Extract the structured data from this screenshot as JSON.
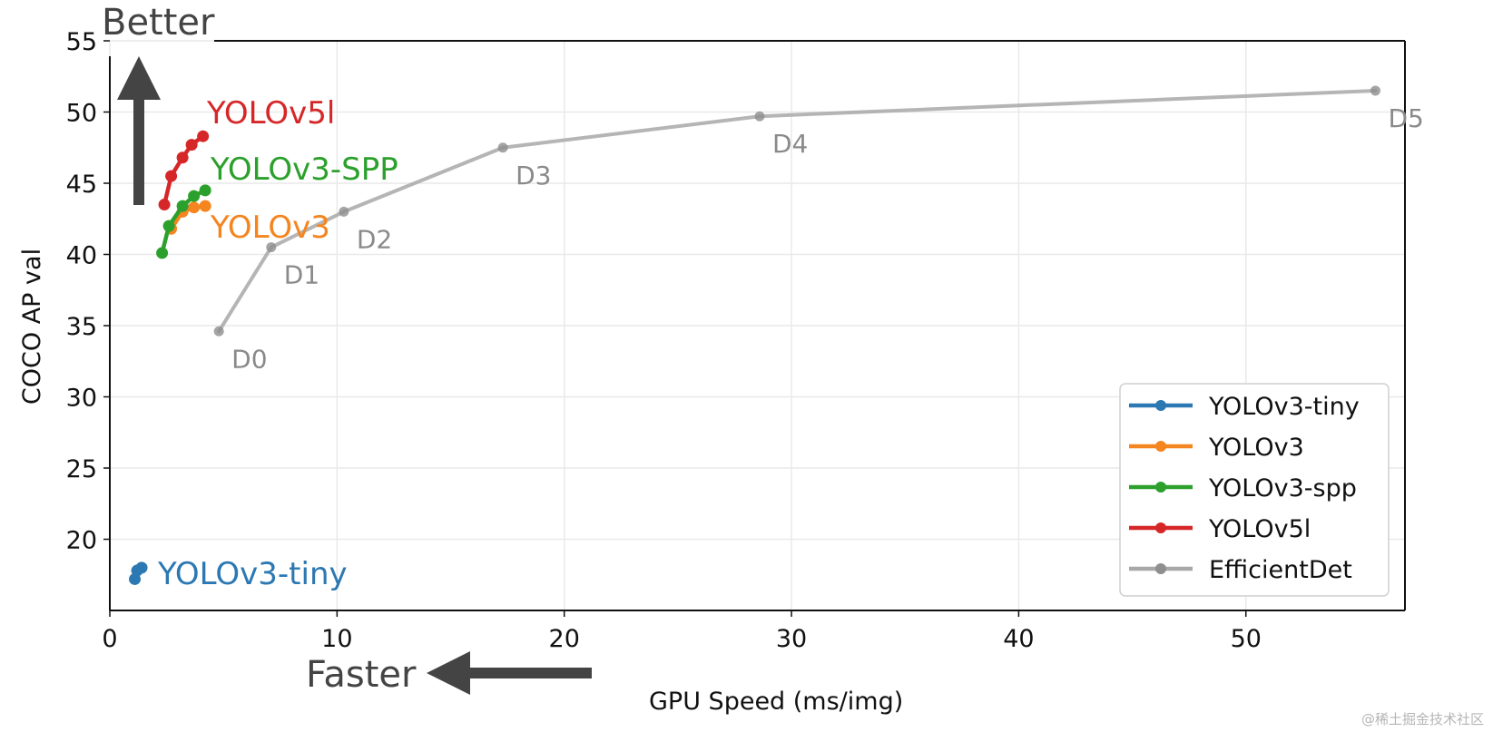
{
  "chart_data": {
    "type": "line",
    "xlabel": "GPU Speed (ms/img)",
    "ylabel": "COCO AP val",
    "xlim": [
      0,
      57
    ],
    "ylim": [
      15,
      55
    ],
    "x_ticks": [
      0,
      10,
      20,
      30,
      40,
      50
    ],
    "y_ticks": [
      20,
      25,
      30,
      35,
      40,
      45,
      50,
      55
    ],
    "grid": true,
    "legend_position": "lower-right",
    "arrows": {
      "better": "Better",
      "faster": "Faster"
    },
    "series": [
      {
        "name": "YOLOv3-tiny",
        "label": "YOLOv3-tiny",
        "color": "#2c78b2",
        "x": [
          1.1,
          1.2,
          1.4
        ],
        "y": [
          17.2,
          17.8,
          18.0
        ]
      },
      {
        "name": "YOLOv3",
        "label": "YOLOv3",
        "color": "#f5851f",
        "x": [
          2.7,
          3.2,
          3.7,
          4.2
        ],
        "y": [
          41.8,
          43.0,
          43.3,
          43.4
        ]
      },
      {
        "name": "YOLOv3-spp",
        "label": "YOLOv3-SPP",
        "color": "#2ca02c",
        "x": [
          2.3,
          2.6,
          3.2,
          3.7,
          4.2
        ],
        "y": [
          40.1,
          42.0,
          43.4,
          44.1,
          44.5
        ]
      },
      {
        "name": "YOLOv5l",
        "label": "YOLOv5l",
        "color": "#d62728",
        "x": [
          2.4,
          2.7,
          3.2,
          3.6,
          4.1
        ],
        "y": [
          43.5,
          45.5,
          46.8,
          47.7,
          48.3
        ]
      },
      {
        "name": "EfficientDet",
        "color": "#a8a8a8",
        "x": [
          4.8,
          7.1,
          10.3,
          17.3,
          28.6,
          55.7
        ],
        "y": [
          34.6,
          40.5,
          43.0,
          47.5,
          49.7,
          51.5
        ],
        "point_labels": [
          "D0",
          "D1",
          "D2",
          "D3",
          "D4",
          "D5"
        ]
      }
    ]
  }
}
